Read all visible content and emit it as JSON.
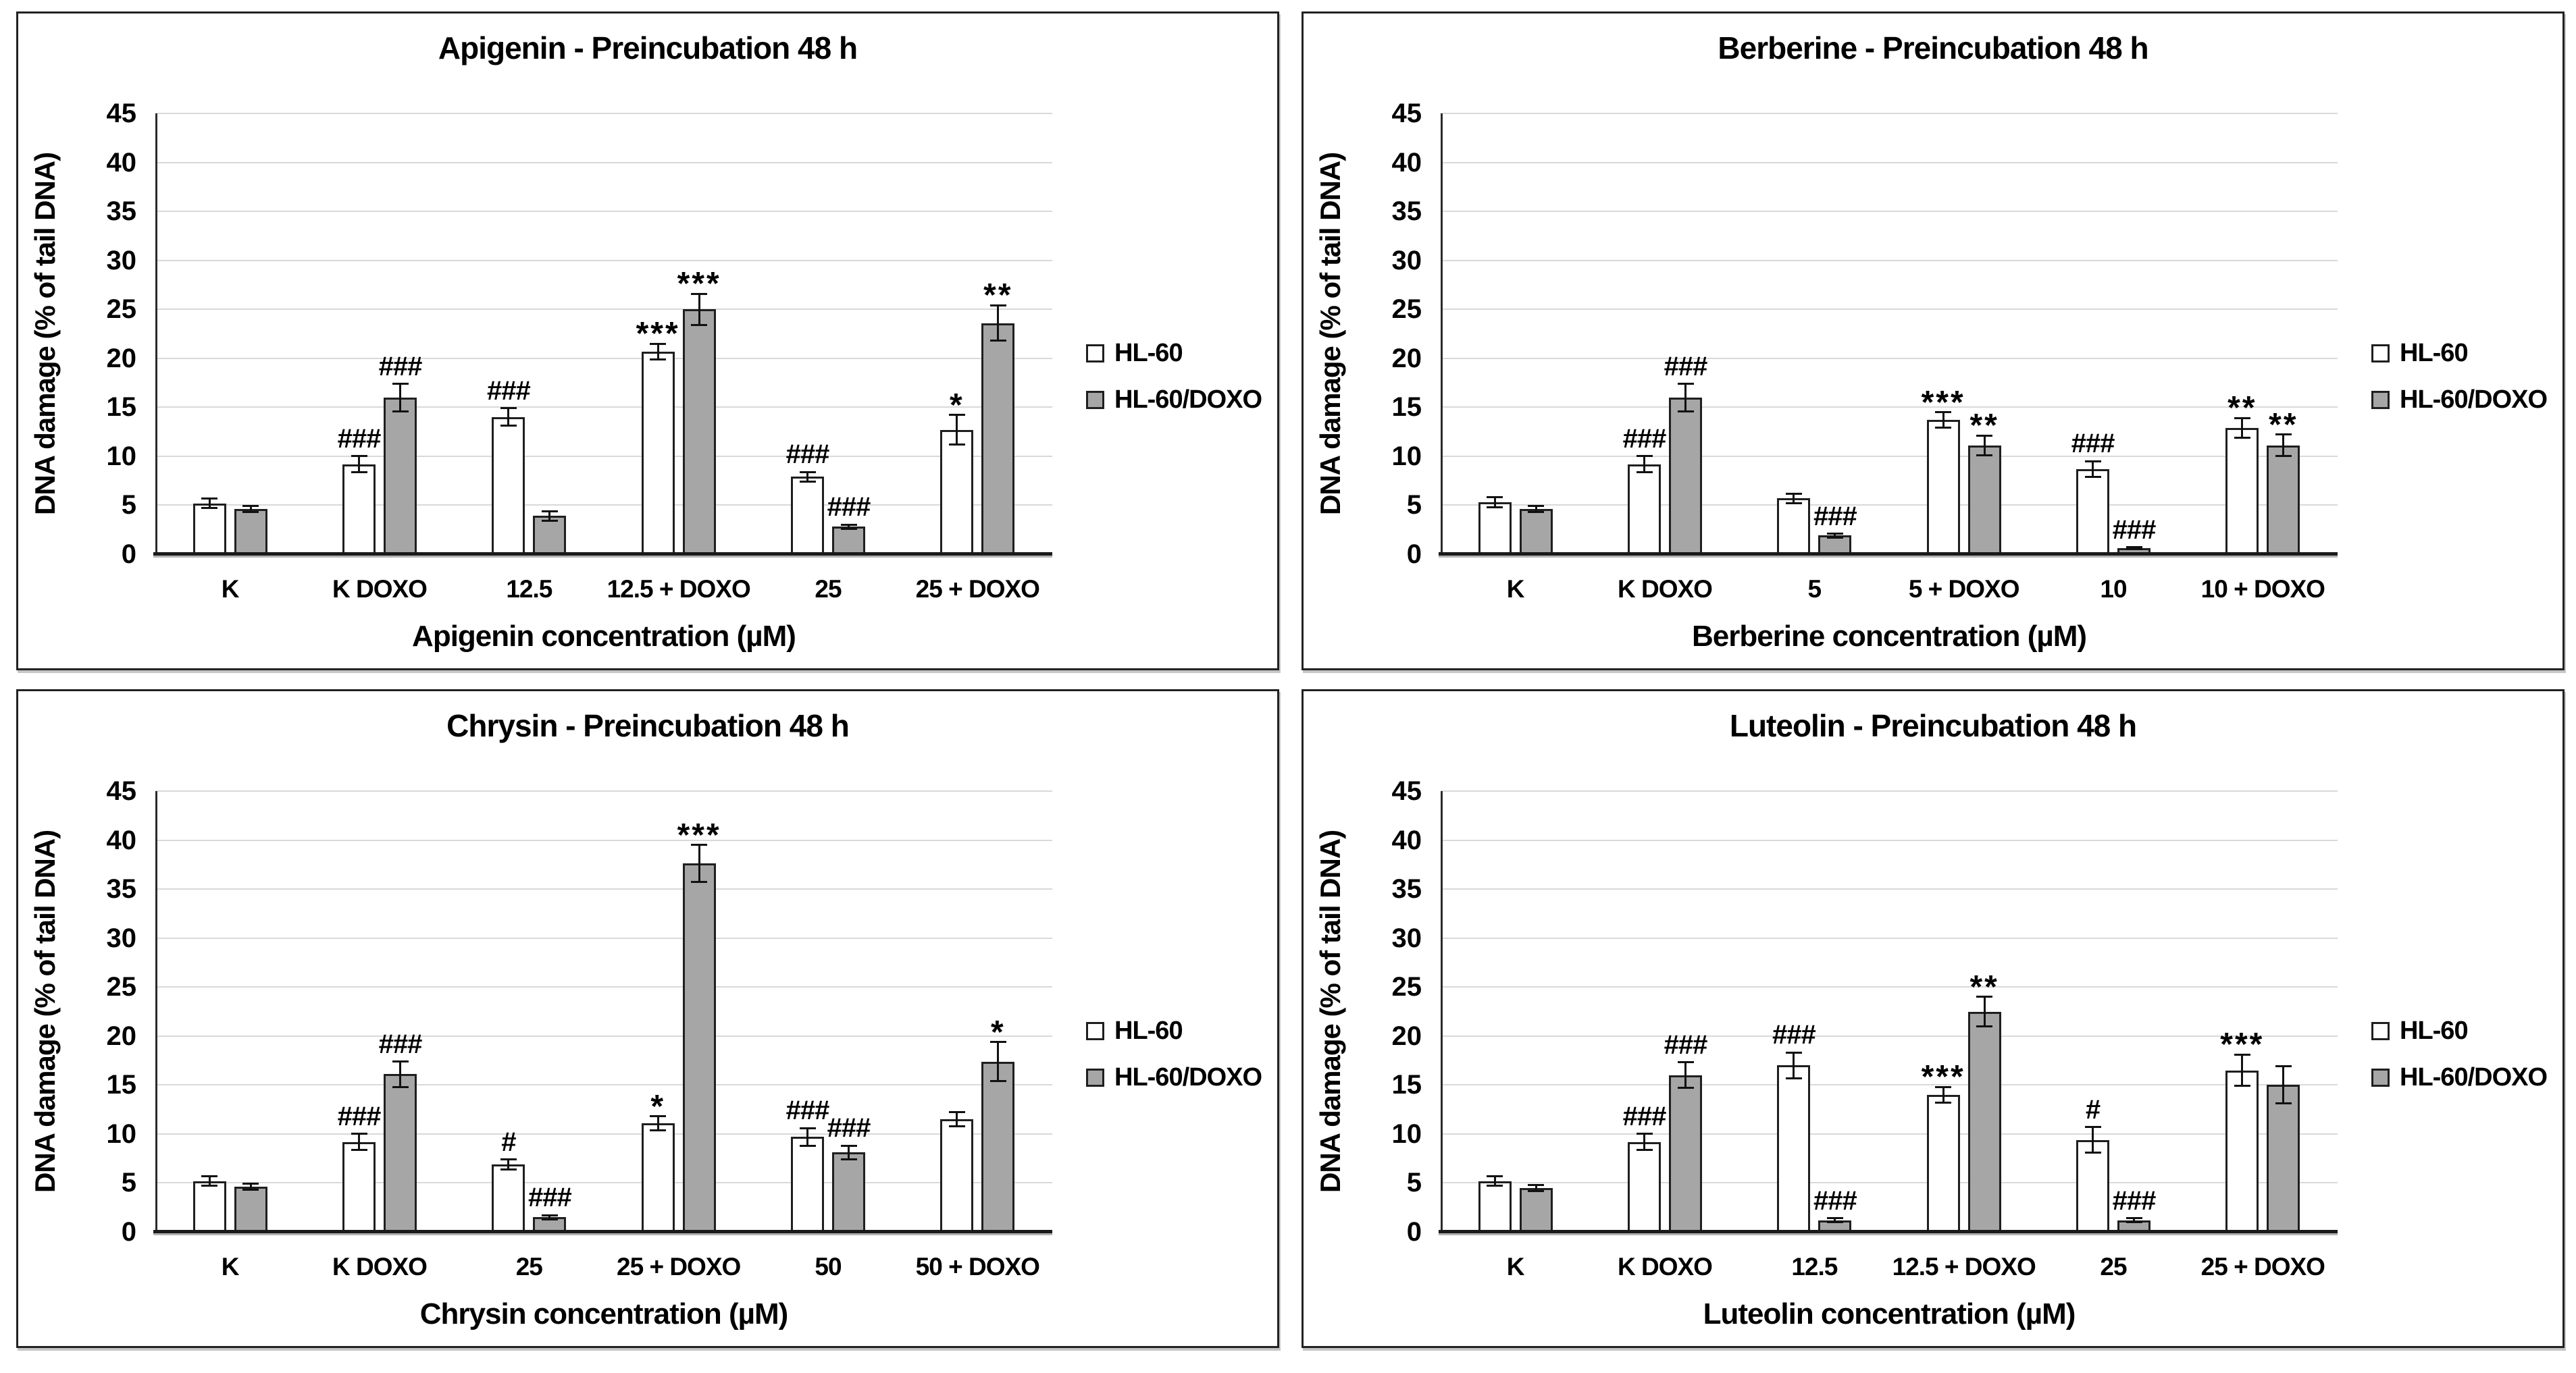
{
  "page": {
    "background": "#ffffff",
    "panel_border_color": "#222222",
    "gridline_color": "#d9d9d9",
    "axis_color": "#1a1a1a"
  },
  "legend": {
    "items": [
      {
        "label": "HL-60",
        "color": "#ffffff"
      },
      {
        "label": "HL-60/DOXO",
        "color": "#a6a6a6"
      }
    ]
  },
  "chart_data": [
    {
      "type": "bar",
      "title": "Apigenin - Preincubation 48 h",
      "xlabel": "Apigenin concentration (µM)",
      "ylabel": "DNA damage (% of tail DNA)",
      "ylim": [
        0,
        45
      ],
      "ystep": 5,
      "grid": true,
      "legend_position": "right",
      "categories": [
        "K",
        "K DOXO",
        "12.5",
        "12.5 + DOXO",
        "25",
        "25 + DOXO"
      ],
      "series": [
        {
          "name": "HL-60",
          "color": "#ffffff",
          "values": [
            5.2,
            9.2,
            14.0,
            20.7,
            7.9,
            12.7
          ],
          "errors": [
            0.5,
            0.8,
            0.9,
            0.8,
            0.5,
            1.5
          ],
          "annotations": [
            null,
            "###",
            "###",
            "***",
            "###",
            "*"
          ]
        },
        {
          "name": "HL-60/DOXO",
          "color": "#a6a6a6",
          "values": [
            4.6,
            16.0,
            3.9,
            25.0,
            2.8,
            23.6
          ],
          "errors": [
            0.3,
            1.4,
            0.5,
            1.6,
            0.2,
            1.8
          ],
          "annotations": [
            null,
            "###",
            null,
            "***",
            "###",
            "**"
          ]
        }
      ]
    },
    {
      "type": "bar",
      "title": "Berberine - Preincubation 48 h",
      "xlabel": "Berberine concentration (µM)",
      "ylabel": "DNA damage (% of tail DNA)",
      "ylim": [
        0,
        45
      ],
      "ystep": 5,
      "grid": true,
      "legend_position": "right",
      "categories": [
        "K",
        "K DOXO",
        "5",
        "5 + DOXO",
        "10",
        "10 + DOXO"
      ],
      "series": [
        {
          "name": "HL-60",
          "color": "#ffffff",
          "values": [
            5.3,
            9.2,
            5.7,
            13.7,
            8.7,
            12.9
          ],
          "errors": [
            0.5,
            0.8,
            0.5,
            0.8,
            0.8,
            1.0
          ],
          "annotations": [
            null,
            "###",
            null,
            "***",
            "###",
            "**"
          ]
        },
        {
          "name": "HL-60/DOXO",
          "color": "#a6a6a6",
          "values": [
            4.6,
            16.0,
            1.9,
            11.1,
            0.6,
            11.1
          ],
          "errors": [
            0.3,
            1.4,
            0.2,
            1.0,
            0.1,
            1.1
          ],
          "annotations": [
            null,
            "###",
            "###",
            "**",
            "###",
            "**"
          ]
        }
      ]
    },
    {
      "type": "bar",
      "title": "Chrysin - Preincubation 48 h",
      "xlabel": "Chrysin concentration (µM)",
      "ylabel": "DNA damage (% of tail DNA)",
      "ylim": [
        0,
        45
      ],
      "ystep": 5,
      "grid": true,
      "legend_position": "right",
      "categories": [
        "K",
        "K DOXO",
        "25",
        "25 + DOXO",
        "50",
        "50 + DOXO"
      ],
      "series": [
        {
          "name": "HL-60",
          "color": "#ffffff",
          "values": [
            5.2,
            9.2,
            6.9,
            11.1,
            9.7,
            11.5
          ],
          "errors": [
            0.5,
            0.8,
            0.5,
            0.7,
            0.9,
            0.7
          ],
          "annotations": [
            null,
            "###",
            "#",
            "*",
            "###",
            null
          ]
        },
        {
          "name": "HL-60/DOXO",
          "color": "#a6a6a6",
          "values": [
            4.6,
            16.1,
            1.5,
            37.6,
            8.1,
            17.4
          ],
          "errors": [
            0.3,
            1.3,
            0.2,
            1.9,
            0.7,
            2.0
          ],
          "annotations": [
            null,
            "###",
            "###",
            "***",
            "###",
            "*"
          ]
        }
      ]
    },
    {
      "type": "bar",
      "title": "Luteolin - Preincubation 48 h",
      "xlabel": "Luteolin concentration (µM)",
      "ylabel": "DNA damage (% of tail DNA)",
      "ylim": [
        0,
        45
      ],
      "ystep": 5,
      "grid": true,
      "legend_position": "right",
      "categories": [
        "K",
        "K DOXO",
        "12.5",
        "12.5 + DOXO",
        "25",
        "25 + DOXO"
      ],
      "series": [
        {
          "name": "HL-60",
          "color": "#ffffff",
          "values": [
            5.2,
            9.2,
            17.0,
            14.0,
            9.4,
            16.5
          ],
          "errors": [
            0.5,
            0.8,
            1.3,
            0.8,
            1.3,
            1.6
          ],
          "annotations": [
            null,
            "###",
            "###",
            "***",
            "#",
            "***"
          ]
        },
        {
          "name": "HL-60/DOXO",
          "color": "#a6a6a6",
          "values": [
            4.5,
            16.0,
            1.2,
            22.5,
            1.2,
            15.0
          ],
          "errors": [
            0.3,
            1.3,
            0.2,
            1.5,
            0.2,
            1.9
          ],
          "annotations": [
            null,
            "###",
            "###",
            "**",
            "###",
            null
          ]
        }
      ]
    }
  ]
}
